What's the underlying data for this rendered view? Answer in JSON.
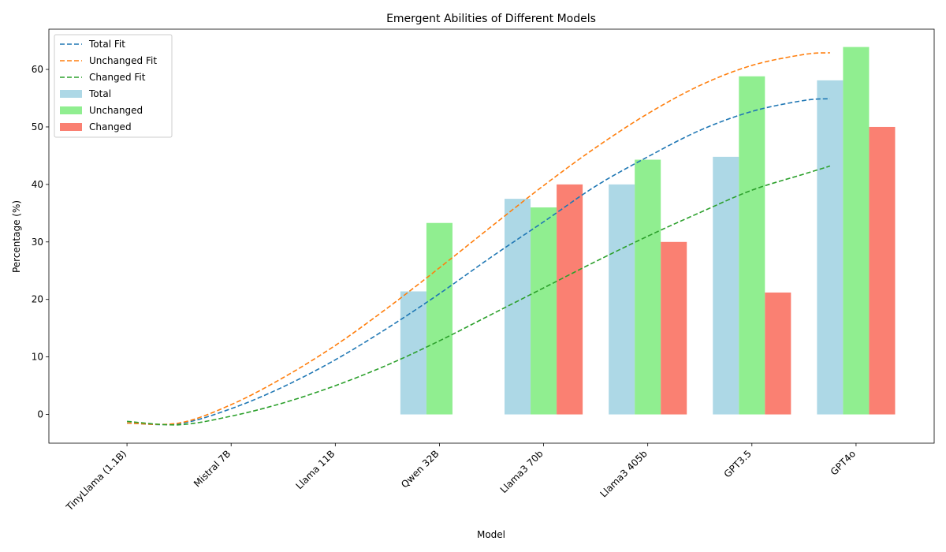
{
  "chart_data": {
    "type": "bar",
    "title": "Emergent Abilities of Different Models",
    "xlabel": "Model",
    "ylabel": "Percentage (%)",
    "categories": [
      "TinyLlama (1.1B)",
      "Mistral 7B",
      "Llama 11B",
      "Qwen 32B",
      "Llama3 70b",
      "Llama3 405b",
      "GPT3.5",
      "GPT4o"
    ],
    "ylim": [
      -5,
      67
    ],
    "yticks": [
      0,
      10,
      20,
      30,
      40,
      50,
      60
    ],
    "grid": false,
    "legend_position": "top-left",
    "series": [
      {
        "name": "Total",
        "color": "#add8e6",
        "values": [
          0,
          0,
          0,
          21.4,
          37.5,
          40.0,
          44.8,
          58.1
        ]
      },
      {
        "name": "Unchanged",
        "color": "#90ee90",
        "values": [
          0,
          0,
          0,
          33.3,
          36.0,
          44.3,
          58.8,
          63.9
        ]
      },
      {
        "name": "Changed",
        "color": "#fa8072",
        "values": [
          0,
          0,
          0,
          0,
          40.0,
          30.0,
          21.2,
          50.0
        ]
      }
    ],
    "fits": [
      {
        "name": "Total Fit",
        "color": "#1f77b4",
        "x": [
          0,
          0.5,
          1,
          1.5,
          2,
          2.5,
          3,
          3.5,
          4,
          4.5,
          5,
          5.5,
          6,
          6.5,
          6.75
        ],
        "values": [
          -1.5,
          -1.6,
          1.0,
          4.8,
          9.5,
          15.0,
          21.0,
          27.4,
          33.5,
          39.7,
          44.8,
          49.4,
          52.7,
          54.6,
          54.9
        ]
      },
      {
        "name": "Unchanged Fit",
        "color": "#ff7f0e",
        "x": [
          0,
          0.5,
          1,
          1.5,
          2,
          2.5,
          3,
          3.5,
          4,
          4.5,
          5,
          5.5,
          6,
          6.5,
          6.75
        ],
        "values": [
          -1.5,
          -1.5,
          1.7,
          6.4,
          12.0,
          18.5,
          25.5,
          32.7,
          39.8,
          46.4,
          52.3,
          57.2,
          60.7,
          62.6,
          62.9
        ]
      },
      {
        "name": "Changed Fit",
        "color": "#2ca02c",
        "x": [
          0,
          0.5,
          1,
          1.5,
          2,
          2.5,
          3,
          3.5,
          4,
          4.5,
          5,
          5.5,
          6,
          6.5,
          6.75
        ],
        "values": [
          -1.2,
          -1.8,
          -0.3,
          2.0,
          5.0,
          8.6,
          12.8,
          17.4,
          22.0,
          26.6,
          31.0,
          35.1,
          39.0,
          41.8,
          43.2
        ]
      }
    ],
    "legend_order": [
      "Total Fit",
      "Unchanged Fit",
      "Changed Fit",
      "Total",
      "Unchanged",
      "Changed"
    ]
  }
}
